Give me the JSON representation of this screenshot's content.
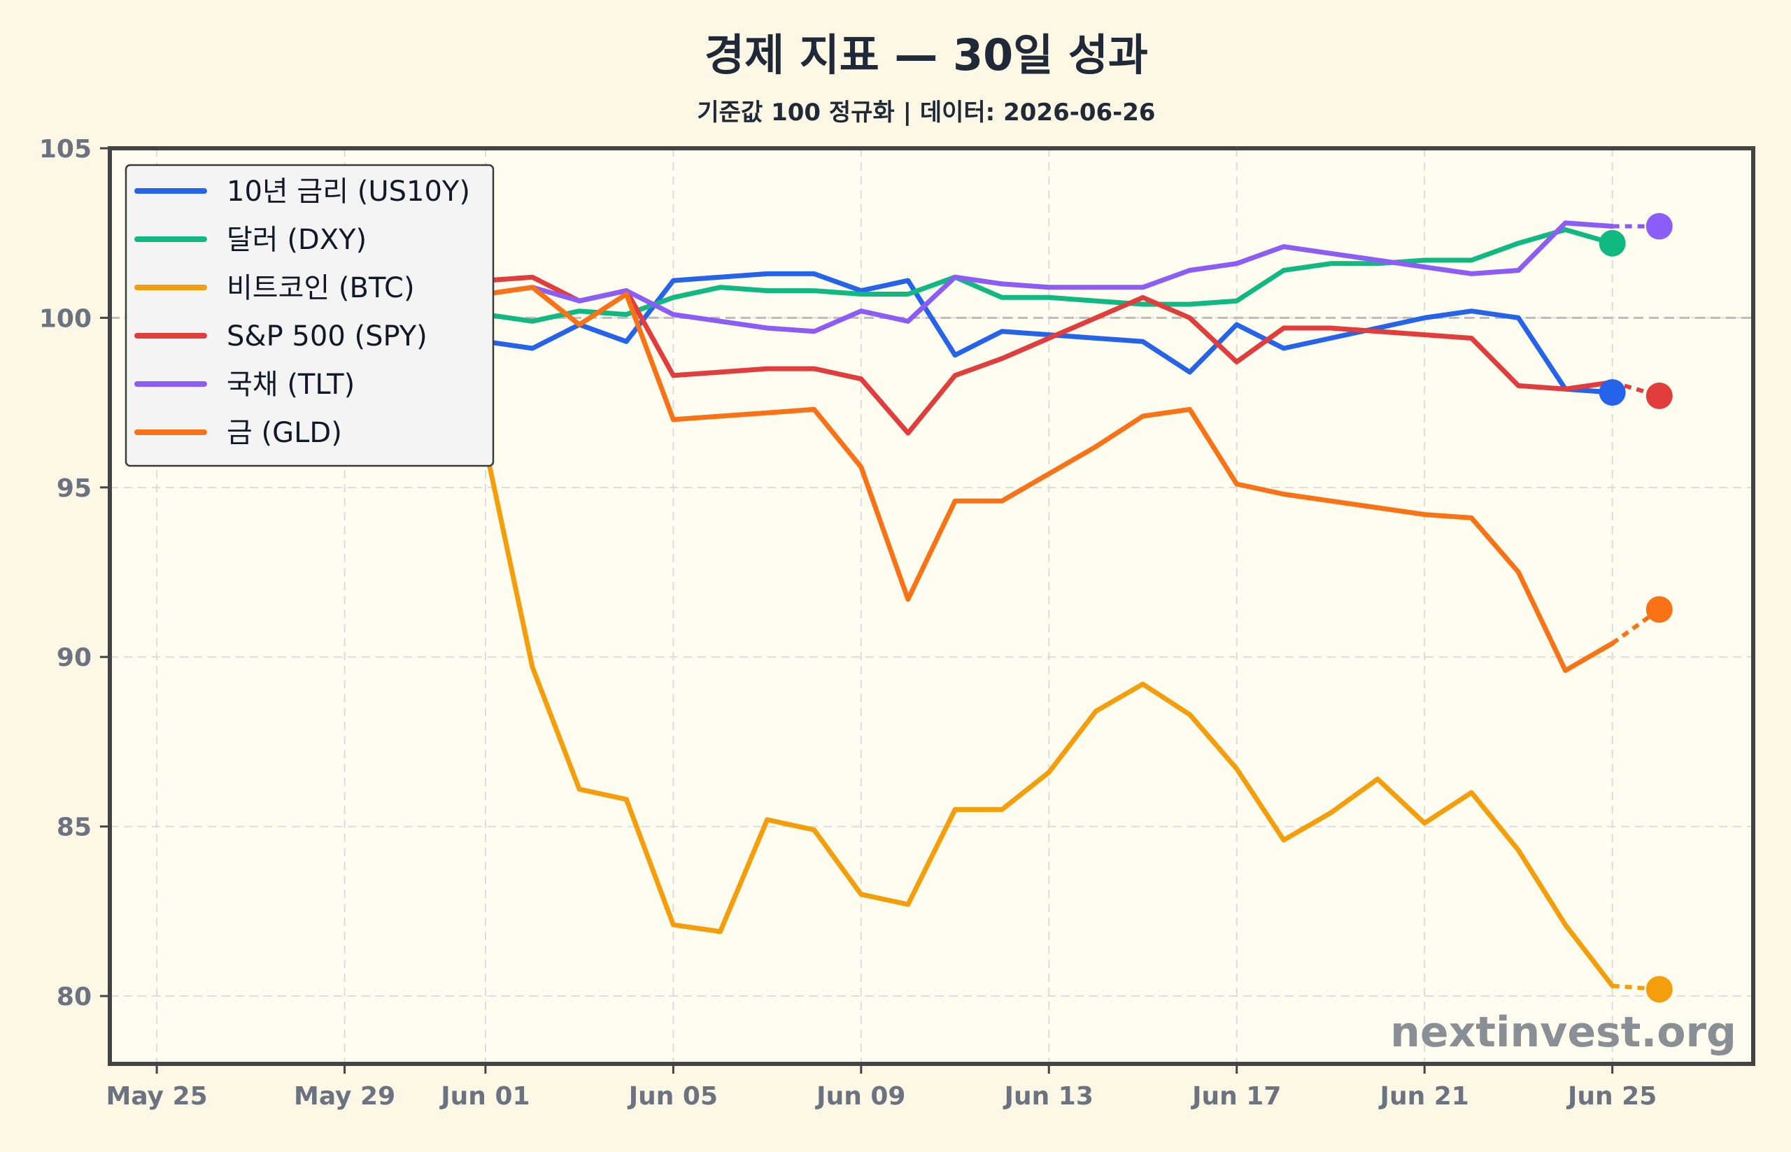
{
  "title": "경제 지표 — 30일 성과",
  "subtitle": "기준값 100 정규화 | 데이터: 2026-06-26",
  "watermark": "nextinvest.org",
  "colors": {
    "background": "#fdf7e6",
    "plot_background": "#fffcf0",
    "frame": "#444444",
    "grid": "#dcdcdc",
    "baseline": "#bbbbbb"
  },
  "chart_data": {
    "type": "line",
    "x_type": "date",
    "xlim": [
      "2026-05-24",
      "2026-06-28"
    ],
    "ylim": [
      78,
      105
    ],
    "x_ticks": [
      {
        "date": "2026-05-25",
        "label": "May 25"
      },
      {
        "date": "2026-05-29",
        "label": "May 29"
      },
      {
        "date": "2026-06-01",
        "label": "Jun 01"
      },
      {
        "date": "2026-06-05",
        "label": "Jun 05"
      },
      {
        "date": "2026-06-09",
        "label": "Jun 09"
      },
      {
        "date": "2026-06-13",
        "label": "Jun 13"
      },
      {
        "date": "2026-06-17",
        "label": "Jun 17"
      },
      {
        "date": "2026-06-21",
        "label": "Jun 21"
      },
      {
        "date": "2026-06-25",
        "label": "Jun 25"
      }
    ],
    "y_ticks": [
      80,
      85,
      90,
      95,
      100,
      105
    ],
    "baseline": 100,
    "grid": true,
    "legend_position": "top-left",
    "x": [
      "2026-05-26",
      "2026-05-27",
      "2026-05-28",
      "2026-05-29",
      "2026-05-30",
      "2026-05-31",
      "2026-06-01",
      "2026-06-02",
      "2026-06-03",
      "2026-06-04",
      "2026-06-05",
      "2026-06-06",
      "2026-06-07",
      "2026-06-08",
      "2026-06-09",
      "2026-06-10",
      "2026-06-11",
      "2026-06-12",
      "2026-06-13",
      "2026-06-14",
      "2026-06-15",
      "2026-06-16",
      "2026-06-17",
      "2026-06-18",
      "2026-06-19",
      "2026-06-20",
      "2026-06-21",
      "2026-06-22",
      "2026-06-23",
      "2026-06-24",
      "2026-06-25"
    ],
    "series": [
      {
        "name": "10년 금리 (US10Y)",
        "color": "#2563eb",
        "values": [
          100.0,
          99.7,
          99.5,
          99.6,
          99.4,
          99.3,
          99.3,
          99.1,
          99.8,
          99.3,
          101.1,
          101.2,
          101.3,
          101.3,
          100.8,
          101.1,
          98.9,
          99.6,
          99.5,
          99.4,
          99.3,
          98.4,
          99.8,
          99.1,
          99.4,
          99.7,
          100.0,
          100.2,
          100.0,
          97.9,
          97.8
        ],
        "end_marker": {
          "date": "2026-06-25",
          "value": 97.8
        }
      },
      {
        "name": "달러 (DXY)",
        "color": "#10b981",
        "values": [
          100.0,
          100.0,
          100.0,
          99.8,
          99.9,
          100.0,
          100.1,
          99.9,
          100.2,
          100.1,
          100.6,
          100.9,
          100.8,
          100.8,
          100.7,
          100.7,
          101.2,
          100.6,
          100.6,
          100.5,
          100.4,
          100.4,
          100.5,
          101.4,
          101.6,
          101.6,
          101.7,
          101.7,
          102.2,
          102.6,
          102.2
        ],
        "end_marker": {
          "date": "2026-06-25",
          "value": 102.2
        }
      },
      {
        "name": "비트코인 (BTC)",
        "color": "#f59e0b",
        "values": [
          100.0,
          100.2,
          100.5,
          101.0,
          101.8,
          101.6,
          96.2,
          89.7,
          86.1,
          85.8,
          82.1,
          81.9,
          85.2,
          84.9,
          83.0,
          82.7,
          85.5,
          85.5,
          86.6,
          88.4,
          89.2,
          88.3,
          86.7,
          84.6,
          85.4,
          86.4,
          85.1,
          86.0,
          84.3,
          82.1,
          80.3
        ],
        "end_marker": {
          "date": "2026-06-26",
          "value": 80.2
        }
      },
      {
        "name": "S&P 500 (SPY)",
        "color": "#e23d3d",
        "values": [
          100.0,
          100.2,
          100.5,
          100.8,
          101.0,
          101.1,
          101.1,
          101.2,
          100.5,
          100.8,
          98.3,
          98.4,
          98.5,
          98.5,
          98.2,
          96.6,
          98.3,
          98.8,
          99.4,
          100.0,
          100.6,
          100.0,
          98.7,
          99.7,
          99.7,
          99.6,
          99.5,
          99.4,
          98.0,
          97.9,
          98.1
        ],
        "end_marker": {
          "date": "2026-06-26",
          "value": 97.7
        }
      },
      {
        "name": "국채 (TLT)",
        "color": "#8b5cf6",
        "values": [
          100.0,
          100.3,
          100.6,
          100.8,
          100.8,
          100.7,
          100.7,
          100.9,
          100.5,
          100.8,
          100.1,
          99.9,
          99.7,
          99.6,
          100.2,
          99.9,
          101.2,
          101.0,
          100.9,
          100.9,
          100.9,
          101.4,
          101.6,
          102.1,
          101.9,
          101.7,
          101.5,
          101.3,
          101.4,
          102.8,
          102.7
        ],
        "end_marker": {
          "date": "2026-06-26",
          "value": 102.7
        }
      },
      {
        "name": "금 (GLD)",
        "color": "#f97316",
        "values": [
          100.0,
          100.4,
          100.7,
          101.0,
          100.9,
          100.7,
          100.7,
          100.9,
          99.8,
          100.7,
          97.0,
          97.1,
          97.2,
          97.3,
          95.6,
          91.7,
          94.6,
          94.6,
          95.4,
          96.2,
          97.1,
          97.3,
          95.1,
          94.8,
          94.6,
          94.4,
          94.2,
          94.1,
          92.5,
          89.6,
          90.4
        ],
        "end_marker": {
          "date": "2026-06-26",
          "value": 91.4
        }
      }
    ]
  }
}
